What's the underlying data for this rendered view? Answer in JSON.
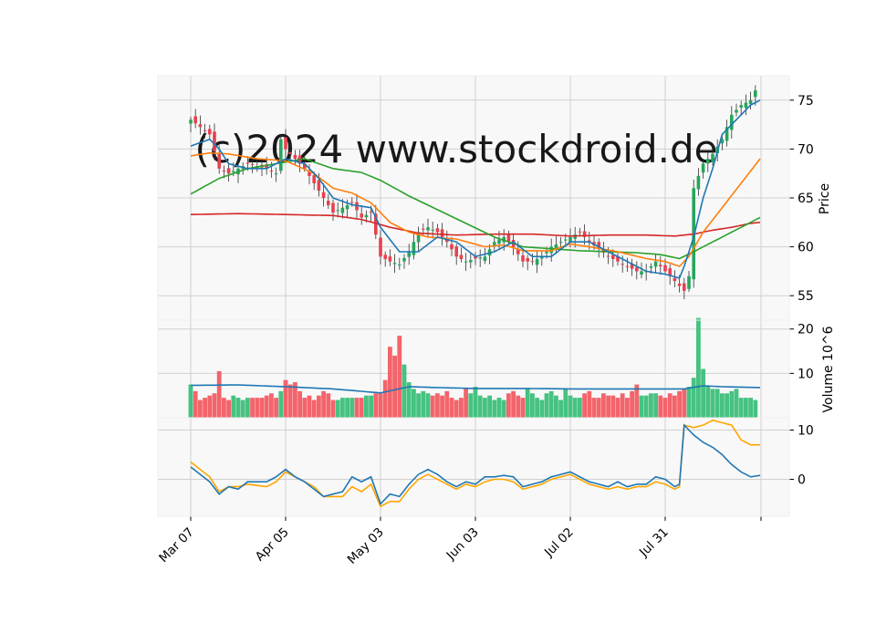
{
  "watermark": "(c)2024 www.stockdroid.de",
  "colors": {
    "up": "#26a65b",
    "down": "#e8414e",
    "ma_short": "#1f77b4",
    "ma_mid": "#ff7f0e",
    "ma_long": "#2ca02c",
    "ma_very_long": "#d62728",
    "volume_ma": "#1f77b4",
    "macd": "#1f77b4",
    "signal": "#ffa500",
    "panel_bg": "#f8f8f8",
    "grid": "#d0d0d0"
  },
  "chart_data": {
    "type": "candlestick",
    "x_tick_labels": [
      "Mar 07",
      "Apr 05",
      "May 03",
      "Jun 03",
      "Jul 02",
      "Jul 31"
    ],
    "x_tick_index": [
      0,
      20,
      40,
      60,
      80,
      100
    ],
    "n_bars": 120,
    "price": {
      "ylabel": "Price",
      "yticks": [
        55,
        60,
        65,
        70,
        75
      ],
      "ylim": [
        52.5,
        77.5
      ],
      "close_anchors": [
        [
          0,
          73.0
        ],
        [
          4,
          71.5
        ],
        [
          6,
          68.0
        ],
        [
          8,
          67.5
        ],
        [
          12,
          68.5
        ],
        [
          16,
          68.0
        ],
        [
          18,
          67.5
        ],
        [
          19,
          71.0
        ],
        [
          20,
          70.0
        ],
        [
          22,
          69.0
        ],
        [
          24,
          68.0
        ],
        [
          26,
          66.5
        ],
        [
          28,
          65.0
        ],
        [
          30,
          63.5
        ],
        [
          32,
          64.0
        ],
        [
          34,
          64.5
        ],
        [
          36,
          63.0
        ],
        [
          38,
          63.5
        ],
        [
          40,
          59.0
        ],
        [
          42,
          58.5
        ],
        [
          44,
          58.2
        ],
        [
          46,
          59.5
        ],
        [
          48,
          61.5
        ],
        [
          50,
          62.0
        ],
        [
          52,
          61.5
        ],
        [
          54,
          60.5
        ],
        [
          56,
          59.0
        ],
        [
          58,
          58.5
        ],
        [
          60,
          58.8
        ],
        [
          62,
          59.0
        ],
        [
          64,
          60.5
        ],
        [
          66,
          61.0
        ],
        [
          68,
          60.0
        ],
        [
          70,
          58.5
        ],
        [
          72,
          58.5
        ],
        [
          74,
          59.0
        ],
        [
          76,
          60.0
        ],
        [
          78,
          60.5
        ],
        [
          80,
          61.0
        ],
        [
          82,
          61.5
        ],
        [
          84,
          60.5
        ],
        [
          86,
          59.8
        ],
        [
          88,
          59.0
        ],
        [
          90,
          58.5
        ],
        [
          92,
          58.0
        ],
        [
          94,
          57.5
        ],
        [
          96,
          57.5
        ],
        [
          98,
          58.5
        ],
        [
          100,
          57.5
        ],
        [
          102,
          56.5
        ],
        [
          104,
          55.5
        ],
        [
          105,
          57.0
        ],
        [
          106,
          66.0
        ],
        [
          108,
          68.5
        ],
        [
          110,
          69.5
        ],
        [
          112,
          71.0
        ],
        [
          114,
          73.5
        ],
        [
          116,
          74.5
        ],
        [
          118,
          75.0
        ],
        [
          119,
          76.0
        ]
      ],
      "ma_short_anchors": [
        [
          0,
          70.3
        ],
        [
          4,
          71.0
        ],
        [
          6,
          70.0
        ],
        [
          8,
          68.5
        ],
        [
          12,
          68.0
        ],
        [
          16,
          68.0
        ],
        [
          20,
          69.0
        ],
        [
          24,
          68.5
        ],
        [
          27,
          67.0
        ],
        [
          30,
          65.0
        ],
        [
          34,
          64.3
        ],
        [
          38,
          64.0
        ],
        [
          40,
          62.0
        ],
        [
          44,
          59.5
        ],
        [
          48,
          59.5
        ],
        [
          52,
          61.0
        ],
        [
          56,
          60.5
        ],
        [
          60,
          59.0
        ],
        [
          64,
          59.5
        ],
        [
          68,
          60.5
        ],
        [
          72,
          59.0
        ],
        [
          76,
          59.0
        ],
        [
          80,
          60.5
        ],
        [
          84,
          60.5
        ],
        [
          88,
          59.5
        ],
        [
          92,
          58.5
        ],
        [
          96,
          57.5
        ],
        [
          100,
          57.2
        ],
        [
          103,
          56.8
        ],
        [
          104,
          58.0
        ],
        [
          106,
          61.0
        ],
        [
          108,
          65.0
        ],
        [
          110,
          68.0
        ],
        [
          112,
          71.5
        ],
        [
          114,
          72.5
        ],
        [
          116,
          73.5
        ],
        [
          118,
          74.5
        ],
        [
          120,
          75.0
        ]
      ],
      "ma_mid_anchors": [
        [
          0,
          69.3
        ],
        [
          4,
          69.6
        ],
        [
          8,
          69.5
        ],
        [
          14,
          69.0
        ],
        [
          20,
          68.8
        ],
        [
          26,
          67.5
        ],
        [
          30,
          66.0
        ],
        [
          34,
          65.5
        ],
        [
          38,
          64.5
        ],
        [
          42,
          62.5
        ],
        [
          46,
          61.5
        ],
        [
          50,
          61.0
        ],
        [
          56,
          60.8
        ],
        [
          62,
          60.0
        ],
        [
          66,
          60.2
        ],
        [
          70,
          59.6
        ],
        [
          76,
          59.6
        ],
        [
          80,
          60.3
        ],
        [
          84,
          60.0
        ],
        [
          90,
          59.5
        ],
        [
          96,
          58.8
        ],
        [
          100,
          58.5
        ],
        [
          103,
          58.0
        ],
        [
          105,
          59.0
        ],
        [
          108,
          61.5
        ],
        [
          112,
          64.0
        ],
        [
          116,
          66.5
        ],
        [
          120,
          69.0
        ]
      ],
      "ma_long_anchors": [
        [
          0,
          65.4
        ],
        [
          6,
          67.0
        ],
        [
          12,
          68.0
        ],
        [
          18,
          68.5
        ],
        [
          24,
          69.0
        ],
        [
          30,
          68.0
        ],
        [
          36,
          67.6
        ],
        [
          40,
          66.8
        ],
        [
          46,
          65.2
        ],
        [
          52,
          63.8
        ],
        [
          58,
          62.4
        ],
        [
          64,
          61.0
        ],
        [
          70,
          60.0
        ],
        [
          76,
          59.8
        ],
        [
          82,
          59.6
        ],
        [
          88,
          59.5
        ],
        [
          94,
          59.4
        ],
        [
          99,
          59.2
        ],
        [
          103,
          58.8
        ],
        [
          106,
          59.5
        ],
        [
          110,
          60.5
        ],
        [
          114,
          61.5
        ],
        [
          118,
          62.5
        ],
        [
          120,
          63.0
        ]
      ],
      "ma_very_long_anchors": [
        [
          0,
          63.3
        ],
        [
          10,
          63.4
        ],
        [
          20,
          63.3
        ],
        [
          30,
          63.2
        ],
        [
          36,
          62.8
        ],
        [
          42,
          62.0
        ],
        [
          48,
          61.4
        ],
        [
          56,
          61.2
        ],
        [
          64,
          61.3
        ],
        [
          72,
          61.3
        ],
        [
          80,
          61.1
        ],
        [
          88,
          61.2
        ],
        [
          96,
          61.2
        ],
        [
          102,
          61.1
        ],
        [
          106,
          61.3
        ],
        [
          110,
          61.7
        ],
        [
          114,
          62.0
        ],
        [
          118,
          62.4
        ],
        [
          120,
          62.5
        ]
      ]
    },
    "volume": {
      "ylabel": "Volume  10^6",
      "yticks": [
        10,
        20
      ],
      "ylim": [
        0,
        22
      ],
      "values": [
        7.5,
        6.0,
        4.0,
        4.5,
        5.0,
        5.5,
        10.5,
        4.5,
        4.0,
        5.0,
        4.5,
        4.0,
        4.5,
        4.5,
        4.5,
        4.5,
        5.0,
        5.5,
        4.5,
        6.0,
        8.5,
        7.5,
        8.0,
        6.0,
        4.5,
        5.0,
        4.0,
        5.0,
        6.0,
        5.5,
        4.0,
        4.0,
        4.5,
        4.5,
        4.5,
        4.5,
        4.5,
        5.0,
        5.0,
        5.5,
        5.5,
        8.5,
        16.0,
        14.0,
        18.5,
        12.0,
        8.0,
        6.5,
        5.5,
        6.0,
        5.5,
        5.0,
        5.5,
        5.0,
        6.0,
        4.5,
        4.0,
        4.5,
        6.5,
        5.5,
        7.0,
        5.0,
        4.5,
        5.0,
        4.0,
        4.5,
        4.0,
        5.5,
        6.0,
        5.0,
        4.5,
        6.5,
        5.5,
        4.5,
        4.0,
        5.5,
        6.0,
        5.0,
        4.0,
        6.5,
        5.0,
        4.5,
        4.5,
        5.5,
        6.0,
        4.5,
        4.5,
        5.5,
        5.0,
        5.0,
        4.5,
        5.5,
        4.5,
        6.0,
        7.5,
        5.0,
        5.0,
        5.5,
        5.5,
        5.0,
        4.5,
        5.5,
        5.0,
        6.0,
        6.5,
        7.0,
        9.0,
        22.5,
        11.0,
        7.0,
        6.5,
        6.5,
        5.5,
        5.5,
        6.0,
        6.5,
        4.5,
        4.5,
        4.5,
        4.0
      ],
      "ma_anchors": [
        [
          0,
          7.3
        ],
        [
          10,
          7.4
        ],
        [
          20,
          7.0
        ],
        [
          30,
          6.5
        ],
        [
          40,
          5.6
        ],
        [
          46,
          7.0
        ],
        [
          52,
          6.8
        ],
        [
          60,
          6.6
        ],
        [
          70,
          6.6
        ],
        [
          80,
          6.5
        ],
        [
          90,
          6.5
        ],
        [
          100,
          6.5
        ],
        [
          104,
          6.5
        ],
        [
          108,
          7.2
        ],
        [
          112,
          7.0
        ],
        [
          116,
          6.9
        ],
        [
          120,
          6.8
        ]
      ]
    },
    "oscillator": {
      "yticks": [
        0,
        10
      ],
      "ylim": [
        -7.5,
        12.5
      ],
      "line1_anchors": [
        [
          0,
          2.5
        ],
        [
          2,
          1.0
        ],
        [
          4,
          -0.5
        ],
        [
          6,
          -3.0
        ],
        [
          8,
          -1.5
        ],
        [
          10,
          -2.0
        ],
        [
          12,
          -0.5
        ],
        [
          16,
          -0.5
        ],
        [
          18,
          0.5
        ],
        [
          20,
          2.0
        ],
        [
          22,
          0.5
        ],
        [
          24,
          -0.5
        ],
        [
          26,
          -2.0
        ],
        [
          28,
          -3.5
        ],
        [
          30,
          -3.0
        ],
        [
          32,
          -2.5
        ],
        [
          34,
          0.5
        ],
        [
          36,
          -0.5
        ],
        [
          38,
          0.5
        ],
        [
          40,
          -5.0
        ],
        [
          42,
          -3.0
        ],
        [
          44,
          -3.5
        ],
        [
          46,
          -1.0
        ],
        [
          48,
          1.0
        ],
        [
          50,
          2.0
        ],
        [
          52,
          1.0
        ],
        [
          54,
          -0.5
        ],
        [
          56,
          -1.5
        ],
        [
          58,
          -0.5
        ],
        [
          60,
          -1.0
        ],
        [
          62,
          0.5
        ],
        [
          64,
          0.5
        ],
        [
          66,
          0.8
        ],
        [
          68,
          0.5
        ],
        [
          70,
          -1.5
        ],
        [
          72,
          -1.0
        ],
        [
          74,
          -0.5
        ],
        [
          76,
          0.5
        ],
        [
          78,
          1.0
        ],
        [
          80,
          1.5
        ],
        [
          82,
          0.5
        ],
        [
          84,
          -0.5
        ],
        [
          86,
          -1.0
        ],
        [
          88,
          -1.5
        ],
        [
          90,
          -0.5
        ],
        [
          92,
          -1.5
        ],
        [
          94,
          -1.0
        ],
        [
          96,
          -1.0
        ],
        [
          98,
          0.5
        ],
        [
          100,
          0.0
        ],
        [
          102,
          -1.5
        ],
        [
          103,
          -1.0
        ],
        [
          104,
          11.0
        ],
        [
          106,
          9.0
        ],
        [
          108,
          7.5
        ],
        [
          110,
          6.5
        ],
        [
          112,
          5.0
        ],
        [
          114,
          3.0
        ],
        [
          116,
          1.5
        ],
        [
          118,
          0.5
        ],
        [
          120,
          0.8
        ]
      ],
      "line2_anchors": [
        [
          0,
          3.5
        ],
        [
          2,
          2.0
        ],
        [
          4,
          0.5
        ],
        [
          6,
          -2.5
        ],
        [
          8,
          -1.5
        ],
        [
          10,
          -1.5
        ],
        [
          12,
          -1.0
        ],
        [
          16,
          -1.5
        ],
        [
          18,
          -0.5
        ],
        [
          20,
          1.5
        ],
        [
          22,
          0.5
        ],
        [
          24,
          -0.5
        ],
        [
          26,
          -1.5
        ],
        [
          28,
          -3.5
        ],
        [
          30,
          -3.5
        ],
        [
          32,
          -3.5
        ],
        [
          34,
          -1.5
        ],
        [
          36,
          -2.5
        ],
        [
          38,
          -1.0
        ],
        [
          40,
          -5.5
        ],
        [
          42,
          -4.5
        ],
        [
          44,
          -4.5
        ],
        [
          46,
          -2.0
        ],
        [
          48,
          0.0
        ],
        [
          50,
          1.0
        ],
        [
          52,
          0.0
        ],
        [
          54,
          -1.0
        ],
        [
          56,
          -2.0
        ],
        [
          58,
          -1.0
        ],
        [
          60,
          -1.5
        ],
        [
          62,
          -0.5
        ],
        [
          64,
          0.0
        ],
        [
          66,
          0.0
        ],
        [
          68,
          -0.5
        ],
        [
          70,
          -2.0
        ],
        [
          72,
          -1.5
        ],
        [
          74,
          -1.0
        ],
        [
          76,
          0.0
        ],
        [
          78,
          0.5
        ],
        [
          80,
          1.0
        ],
        [
          82,
          0.0
        ],
        [
          84,
          -1.0
        ],
        [
          86,
          -1.5
        ],
        [
          88,
          -2.0
        ],
        [
          90,
          -1.5
        ],
        [
          92,
          -2.0
        ],
        [
          94,
          -1.5
        ],
        [
          96,
          -1.5
        ],
        [
          98,
          -0.5
        ],
        [
          100,
          -1.0
        ],
        [
          102,
          -2.0
        ],
        [
          103,
          -1.5
        ],
        [
          104,
          11.0
        ],
        [
          106,
          10.5
        ],
        [
          108,
          11.0
        ],
        [
          110,
          12.0
        ],
        [
          112,
          11.5
        ],
        [
          114,
          11.0
        ],
        [
          116,
          8.0
        ],
        [
          118,
          7.0
        ],
        [
          120,
          7.0
        ]
      ]
    }
  }
}
